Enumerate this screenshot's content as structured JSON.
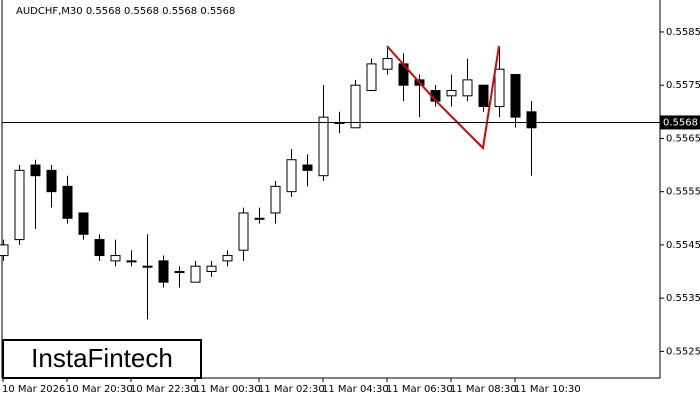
{
  "chart_data": {
    "type": "candlestick",
    "title": "AUDCHF,M30  0.5568 0.5568 0.5568 0.5568",
    "categories": [
      "10 Mar 2026",
      null,
      null,
      null,
      "10 Mar 20:30",
      null,
      null,
      null,
      "10 Mar 22:30",
      null,
      null,
      null,
      "11 Mar 00:30",
      null,
      null,
      null,
      "11 Mar 02:30",
      null,
      null,
      null,
      "11 Mar 04:30",
      null,
      null,
      null,
      "11 Mar 06:30",
      null,
      null,
      null,
      "11 Mar 08:30",
      null,
      null,
      null,
      "11 Mar 10:30",
      null
    ],
    "open": [
      0.5543,
      0.5546,
      0.556,
      0.5559,
      0.5556,
      0.5551,
      0.5546,
      0.5542,
      0.5542,
      0.5541,
      0.5542,
      0.554,
      0.5538,
      0.554,
      0.5542,
      0.5544,
      0.555,
      0.5551,
      0.5555,
      0.556,
      0.5558,
      0.5568,
      0.5567,
      0.5574,
      0.5578,
      0.5579,
      0.5576,
      0.5574,
      0.5573,
      0.5573,
      0.5575,
      0.5571,
      0.5577,
      0.557
    ],
    "high": [
      0.5546,
      0.556,
      0.5561,
      0.556,
      0.5558,
      0.5551,
      0.5547,
      0.5546,
      0.5544,
      0.5547,
      0.5543,
      0.5541,
      0.5542,
      0.5542,
      0.5544,
      0.5552,
      0.5552,
      0.5557,
      0.5563,
      0.5562,
      0.5575,
      0.557,
      0.5576,
      0.558,
      0.5582,
      0.5581,
      0.5577,
      0.5575,
      0.5577,
      0.558,
      0.5575,
      0.5582,
      0.5577,
      0.5572
    ],
    "low": [
      0.5542,
      0.5545,
      0.5548,
      0.5552,
      0.5549,
      0.5546,
      0.5542,
      0.5541,
      0.5541,
      0.5531,
      0.5537,
      0.5537,
      0.5538,
      0.5539,
      0.5541,
      0.5542,
      0.5549,
      0.5549,
      0.5554,
      0.5556,
      0.5557,
      0.5566,
      0.5567,
      0.5574,
      0.5577,
      0.5572,
      0.5569,
      0.5571,
      0.5571,
      0.5572,
      0.557,
      0.5569,
      0.5567,
      0.5558
    ],
    "close": [
      0.5545,
      0.5559,
      0.5558,
      0.5555,
      0.555,
      0.5547,
      0.5543,
      0.5543,
      0.5542,
      0.5541,
      0.5538,
      0.554,
      0.5541,
      0.5541,
      0.5543,
      0.5551,
      0.555,
      0.5556,
      0.5561,
      0.5559,
      0.5569,
      0.5568,
      0.5575,
      0.5579,
      0.558,
      0.5575,
      0.5575,
      0.5572,
      0.5574,
      0.5576,
      0.5571,
      0.5578,
      0.5569,
      0.5567
    ],
    "current_price": 0.5568,
    "ylim": [
      0.552,
      0.5591
    ],
    "yticks": [
      0.5525,
      0.5535,
      0.5545,
      0.5555,
      0.5565,
      0.5575,
      0.5585
    ],
    "color_up": "#ffffff",
    "color_down": "#000000"
  },
  "logo": "InstaFintech"
}
